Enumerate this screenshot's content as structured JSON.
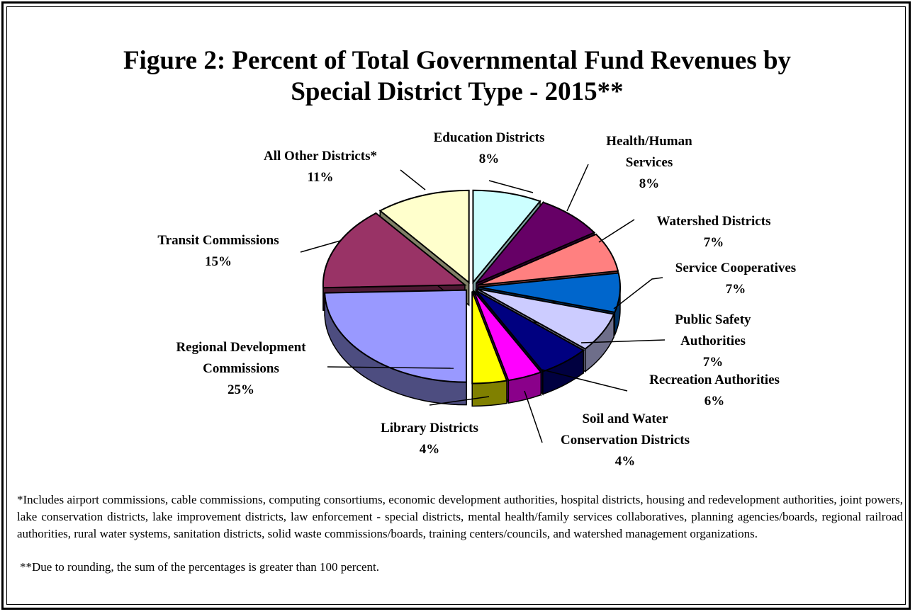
{
  "title_line1": "Figure 2:  Percent of Total Governmental Fund Revenues by",
  "title_line2": "Special District Type - 2015**",
  "footnote1": "*Includes airport commissions, cable commissions, computing consortiums, economic development authorities, hospital districts, housing and redevelopment authorities, joint powers, lake conservation districts, lake improvement districts, law enforcement - special districts, mental health/family services collaboratives, planning agencies/boards, regional railroad authorities, rural water systems, sanitation districts, solid waste commissions/boards, training centers/councils, and watershed management organizations.",
  "footnote2": "**Due to rounding, the sum of the percentages is greater than 100 percent.",
  "chart_data": {
    "type": "pie",
    "title": "Figure 2:  Percent of Total Governmental Fund Revenues by Special District Type - 2015**",
    "exploded": true,
    "three_d": true,
    "slices": [
      {
        "label": [
          "Education Districts"
        ],
        "value": 8,
        "value_label": "8%",
        "color": "#CCFFFF",
        "side": "#7FA3A3",
        "lbl_anchor": "middle",
        "lbl_pos": "top"
      },
      {
        "label": [
          "Health/Human",
          "Services"
        ],
        "value": 8,
        "value_label": "8%",
        "color": "#660066",
        "side": "#330033",
        "lbl_anchor": "middle",
        "lbl_pos": "upper-right"
      },
      {
        "label": [
          "Watershed Districts"
        ],
        "value": 7,
        "value_label": "7%",
        "color": "#FF8080",
        "side": "#8B4545",
        "lbl_anchor": "middle",
        "lbl_pos": "right"
      },
      {
        "label": [
          "Service Cooperatives"
        ],
        "value": 7,
        "value_label": "7%",
        "color": "#0066CC",
        "side": "#003366",
        "lbl_anchor": "middle",
        "lbl_pos": "right"
      },
      {
        "label": [
          "Public Safety",
          "Authorities"
        ],
        "value": 7,
        "value_label": "7%",
        "color": "#CCCCFF",
        "side": "#6E6E8A",
        "lbl_anchor": "middle",
        "lbl_pos": "right"
      },
      {
        "label": [
          "Recreation Authorities"
        ],
        "value": 6,
        "value_label": "6%",
        "color": "#000080",
        "side": "#000040",
        "lbl_anchor": "middle",
        "lbl_pos": "lower-right"
      },
      {
        "label": [
          "Soil and Water",
          "Conservation Districts"
        ],
        "value": 4,
        "value_label": "4%",
        "color": "#FF00FF",
        "side": "#8A008A",
        "lbl_anchor": "middle",
        "lbl_pos": "bottom"
      },
      {
        "label": [
          "Library Districts"
        ],
        "value": 4,
        "value_label": "4%",
        "color": "#FFFF00",
        "side": "#808000",
        "lbl_anchor": "middle",
        "lbl_pos": "bottom"
      },
      {
        "label": [
          "Regional Development",
          "Commissions"
        ],
        "value": 25,
        "value_label": "25%",
        "color": "#9999FF",
        "side": "#4D4D80",
        "lbl_anchor": "middle",
        "lbl_pos": "left"
      },
      {
        "label": [
          "Transit Commissions"
        ],
        "value": 15,
        "value_label": "15%",
        "color": "#993366",
        "side": "#4D1A33",
        "lbl_anchor": "middle",
        "lbl_pos": "left"
      },
      {
        "label": [
          "All Other Districts*"
        ],
        "value": 11,
        "value_label": "11%",
        "color": "#FFFFCC",
        "side": "#808066",
        "lbl_anchor": "middle",
        "lbl_pos": "upper-left"
      }
    ]
  }
}
